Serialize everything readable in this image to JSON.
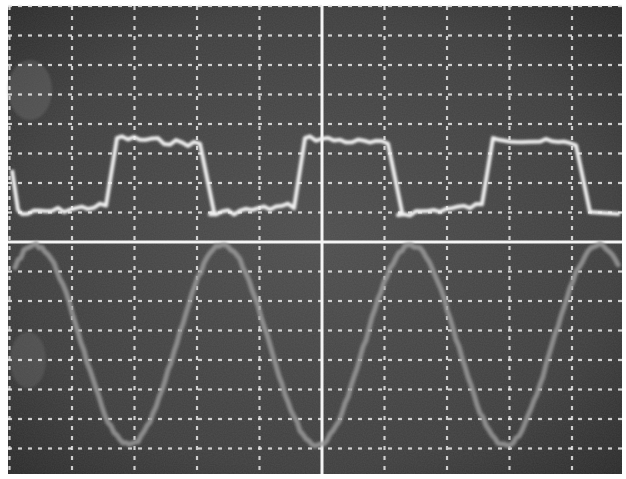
{
  "scope": {
    "screen_color": "#3a3a3a",
    "grid_color": "#e8e8e8",
    "square_trace_color": "#f2f2f2",
    "sine_trace_color": "#9a9a9a",
    "graticule_divisions_x": 10,
    "graticule_divisions_y": 8,
    "square_wave_cycles": 3,
    "sine_wave_cycles": 3
  }
}
